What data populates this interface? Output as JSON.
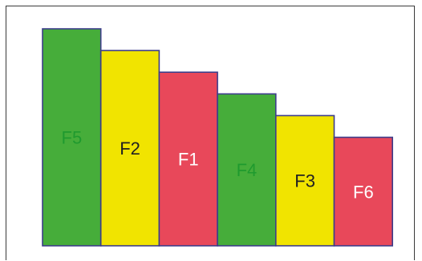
{
  "chart_data": {
    "type": "bar",
    "title": "",
    "xlabel": "",
    "ylabel": "",
    "grid": false,
    "categories": [
      "F5",
      "F2",
      "F1",
      "F4",
      "F3",
      "F6"
    ],
    "values": [
      100,
      90,
      80,
      70,
      60,
      50
    ],
    "ylim": [
      0,
      100
    ],
    "bar_colors": [
      "#46ad3a",
      "#f1e400",
      "#e8485a",
      "#46ad3a",
      "#f1e400",
      "#e8485a"
    ],
    "label_colors": [
      "#1f9a2e",
      "#222222",
      "#ffffff",
      "#1f9a2e",
      "#222222",
      "#ffffff"
    ],
    "bar_outline_color": "#3d3d8a"
  }
}
